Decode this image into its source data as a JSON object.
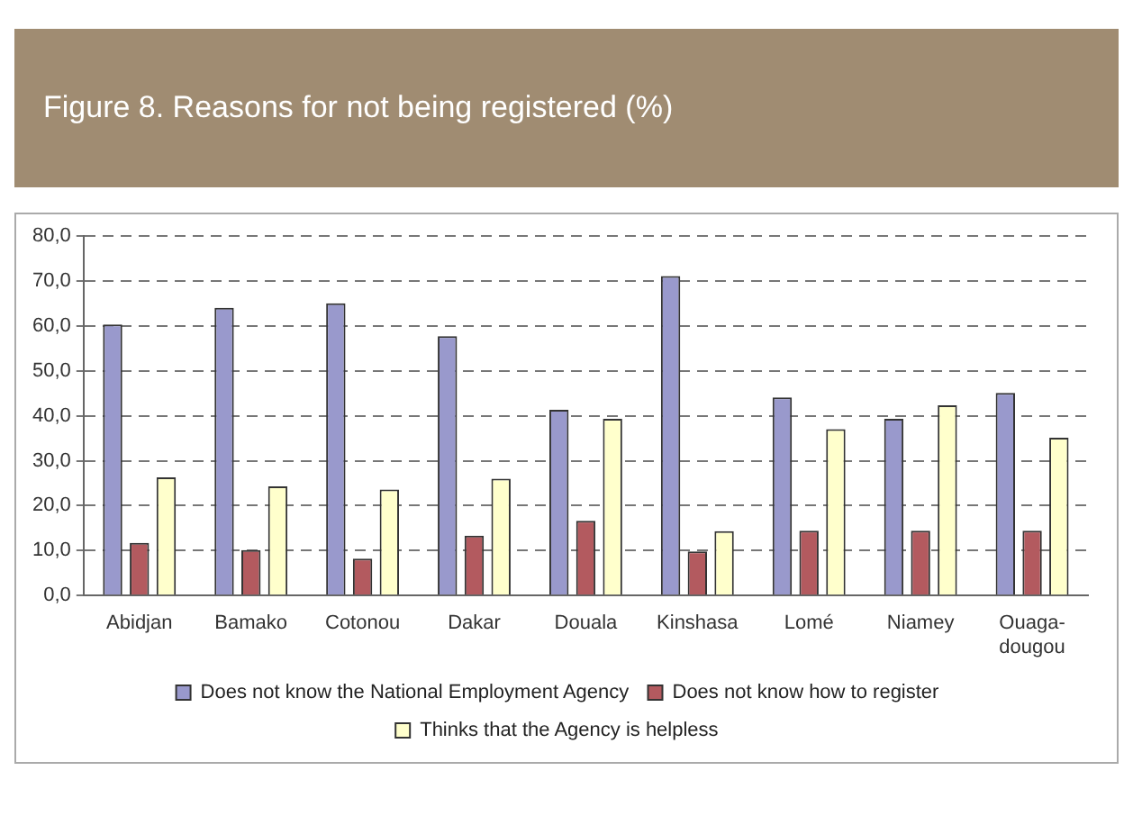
{
  "chart_data": {
    "type": "bar",
    "title": "Figure 8.    Reasons for not being registered (%)",
    "categories": [
      "Abidjan",
      "Bamako",
      "Cotonou",
      "Dakar",
      "Douala",
      "Kinshasa",
      "Lomé",
      "Niamey",
      "Ouaga-dougou"
    ],
    "series": [
      {
        "name": "Does not know the National Employment Agency",
        "color": "#9999cc",
        "values": [
          60.3,
          64.0,
          65.0,
          57.7,
          41.3,
          71.1,
          44.1,
          39.3,
          45.1
        ]
      },
      {
        "name": "Does not know how to register",
        "color": "#b35a5f",
        "values": [
          11.7,
          10.1,
          8.2,
          13.3,
          16.6,
          9.8,
          14.4,
          14.4,
          14.4
        ]
      },
      {
        "name": "Thinks that the Agency is helpless",
        "color": "#ffffcc",
        "values": [
          26.3,
          24.3,
          23.6,
          26.0,
          39.3,
          14.3,
          37.0,
          42.3,
          35.1
        ]
      }
    ],
    "ylim": [
      0,
      80
    ],
    "yticks": [
      {
        "value": 0,
        "label": "0,0"
      },
      {
        "value": 10,
        "label": "10,0"
      },
      {
        "value": 20,
        "label": "20,0"
      },
      {
        "value": 30,
        "label": "30,0"
      },
      {
        "value": 40,
        "label": "40,0"
      },
      {
        "value": 50,
        "label": "50,0"
      },
      {
        "value": 60,
        "label": "60,0"
      },
      {
        "value": 70,
        "label": "70,0"
      },
      {
        "value": 80,
        "label": "80,0"
      }
    ],
    "grid": "y",
    "legend": "bottom"
  }
}
